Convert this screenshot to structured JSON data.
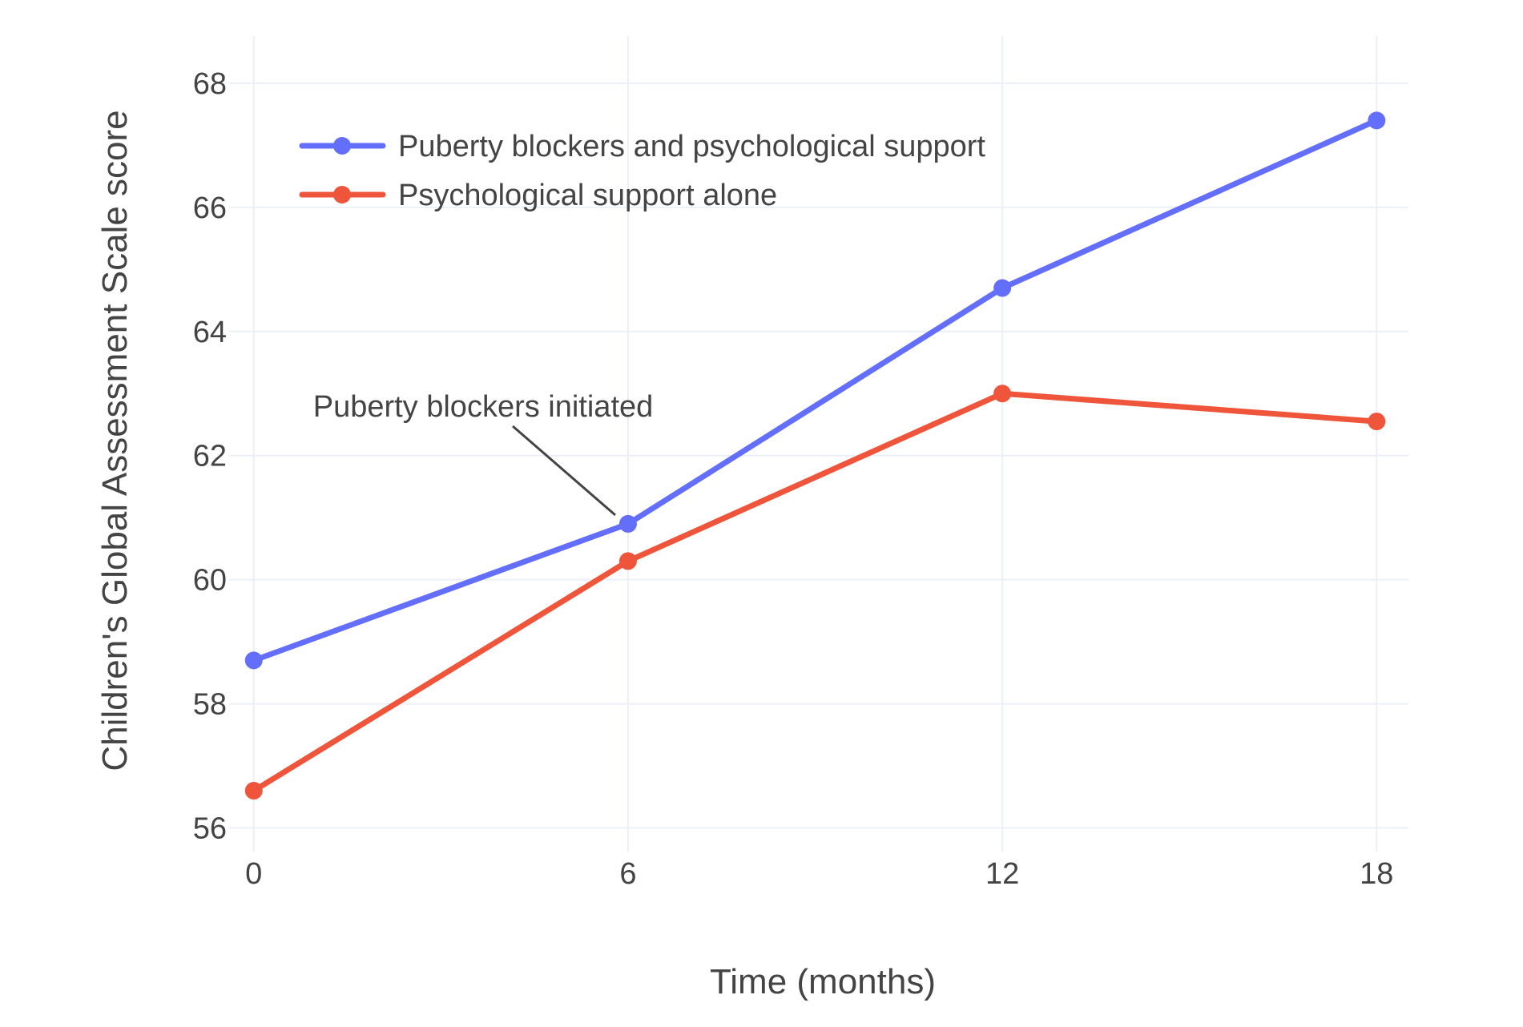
{
  "figure": {
    "background": "#ffffff"
  },
  "colors": {
    "text": "#444444",
    "grid": "#EBF0F8",
    "annotation_line": "#444444",
    "background": "#ffffff"
  },
  "chart_data": {
    "type": "line",
    "title": "",
    "xlabel": "Time (months)",
    "ylabel": "Children's Global Assessment Scale score",
    "x": [
      0,
      6,
      12,
      18
    ],
    "series": [
      {
        "name": "Puberty blockers and psychological support",
        "color": "#636EFA",
        "values": [
          58.7,
          60.9,
          64.7,
          67.4
        ]
      },
      {
        "name": "Psychological support alone",
        "color": "#EF553B",
        "values": [
          56.6,
          60.3,
          63.0,
          62.55
        ]
      }
    ],
    "x_ticks": [
      "0",
      "6",
      "12",
      "18"
    ],
    "x_tick_values": [
      0,
      6,
      12,
      18
    ],
    "y_ticks": [
      "56",
      "58",
      "60",
      "62",
      "64",
      "66",
      "68"
    ],
    "y_tick_values": [
      56,
      58,
      60,
      62,
      64,
      66,
      68
    ],
    "x_range": [
      -0.305,
      18.51
    ],
    "y_range": [
      55.71,
      68.76
    ],
    "grid": true,
    "legend_position": "inside-top-left",
    "marker_style": "circle",
    "annotation": {
      "text": "Puberty blockers initiated",
      "points_to": {
        "series": "Puberty blockers and psychological support",
        "x": 6,
        "y": 60.9
      }
    }
  }
}
